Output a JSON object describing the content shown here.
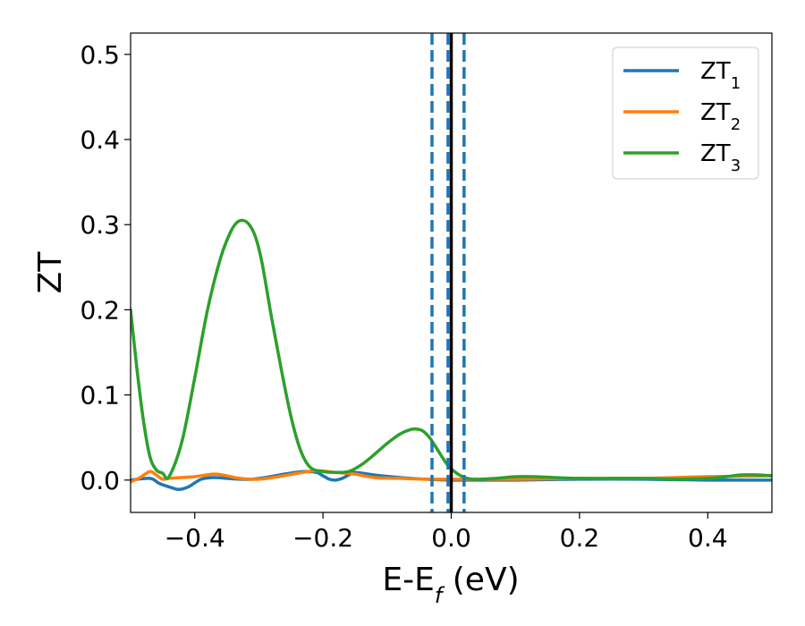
{
  "chart_data": {
    "type": "line",
    "xlabel_main": "E-E",
    "xlabel_sub": "f",
    "xlabel_unit": " (eV)",
    "ylabel": "ZT",
    "xlim": [
      -0.5,
      0.5
    ],
    "ylim": [
      -0.038,
      0.525
    ],
    "xticks": [
      -0.4,
      -0.2,
      0.0,
      0.2,
      0.4
    ],
    "xtick_labels": [
      "−0.4",
      "−0.2",
      "0.0",
      "0.2",
      "0.4"
    ],
    "yticks": [
      0.0,
      0.1,
      0.2,
      0.3,
      0.4,
      0.5
    ],
    "ytick_labels": [
      "0.0",
      "0.1",
      "0.2",
      "0.3",
      "0.4",
      "0.5"
    ],
    "grid": false,
    "legend_position": "top-right",
    "vlines": [
      {
        "x": 0.0,
        "style": "solid",
        "color": "#000000"
      },
      {
        "x": -0.03,
        "style": "dashed",
        "color": "#1f77b4"
      },
      {
        "x": -0.005,
        "style": "dashed",
        "color": "#1f77b4"
      },
      {
        "x": 0.02,
        "style": "dashed",
        "color": "#1f77b4"
      }
    ],
    "series": [
      {
        "name": "ZT",
        "name_sub": "1",
        "color": "#1f77b4",
        "x": [
          -0.5,
          -0.47,
          -0.455,
          -0.44,
          -0.425,
          -0.41,
          -0.39,
          -0.37,
          -0.35,
          -0.33,
          -0.31,
          -0.29,
          -0.26,
          -0.23,
          -0.21,
          -0.2,
          -0.19,
          -0.18,
          -0.17,
          -0.16,
          -0.15,
          -0.12,
          -0.08,
          -0.04,
          0.0,
          0.05,
          0.1,
          0.2,
          0.3,
          0.4,
          0.5
        ],
        "y": [
          0.0,
          0.002,
          -0.004,
          -0.008,
          -0.011,
          -0.008,
          0.001,
          0.003,
          0.002,
          0.001,
          0.001,
          0.003,
          0.007,
          0.01,
          0.009,
          0.005,
          0.001,
          0.0,
          0.002,
          0.006,
          0.009,
          0.006,
          0.003,
          0.001,
          0.0,
          0.0,
          0.0,
          0.001,
          0.001,
          0.0,
          0.0
        ]
      },
      {
        "name": "ZT",
        "name_sub": "2",
        "color": "#ff7f0e",
        "x": [
          -0.5,
          -0.485,
          -0.47,
          -0.46,
          -0.45,
          -0.44,
          -0.42,
          -0.4,
          -0.37,
          -0.35,
          -0.33,
          -0.3,
          -0.27,
          -0.24,
          -0.21,
          -0.18,
          -0.15,
          -0.12,
          -0.08,
          -0.04,
          0.0,
          0.05,
          0.1,
          0.2,
          0.3,
          0.4,
          0.5
        ],
        "y": [
          -0.002,
          0.003,
          0.01,
          0.006,
          0.001,
          0.002,
          0.003,
          0.004,
          0.007,
          0.005,
          0.002,
          0.001,
          0.004,
          0.008,
          0.011,
          0.009,
          0.007,
          0.003,
          0.002,
          0.001,
          0.001,
          0.001,
          0.001,
          0.002,
          0.002,
          0.004,
          0.005
        ]
      },
      {
        "name": "ZT",
        "name_sub": "3",
        "color": "#2ca02c",
        "x": [
          -0.5,
          -0.49,
          -0.48,
          -0.47,
          -0.46,
          -0.45,
          -0.44,
          -0.42,
          -0.4,
          -0.38,
          -0.36,
          -0.345,
          -0.335,
          -0.325,
          -0.315,
          -0.305,
          -0.295,
          -0.28,
          -0.265,
          -0.25,
          -0.235,
          -0.22,
          -0.2,
          -0.18,
          -0.16,
          -0.14,
          -0.12,
          -0.1,
          -0.08,
          -0.065,
          -0.055,
          -0.045,
          -0.035,
          -0.025,
          -0.015,
          -0.005,
          0.005,
          0.015,
          0.025,
          0.035,
          0.045,
          0.07,
          0.1,
          0.13,
          0.16,
          0.2,
          0.25,
          0.3,
          0.35,
          0.4,
          0.43,
          0.45,
          0.48,
          0.5
        ],
        "y": [
          0.2,
          0.13,
          0.07,
          0.028,
          0.012,
          0.008,
          0.004,
          0.045,
          0.12,
          0.2,
          0.26,
          0.29,
          0.302,
          0.305,
          0.3,
          0.285,
          0.255,
          0.19,
          0.13,
          0.075,
          0.035,
          0.015,
          0.01,
          0.009,
          0.01,
          0.018,
          0.03,
          0.043,
          0.054,
          0.059,
          0.06,
          0.058,
          0.051,
          0.04,
          0.028,
          0.017,
          0.01,
          0.005,
          0.002,
          0.001,
          0.001,
          0.002,
          0.004,
          0.004,
          0.003,
          0.002,
          0.002,
          0.002,
          0.001,
          0.002,
          0.004,
          0.006,
          0.006,
          0.005
        ]
      }
    ]
  }
}
